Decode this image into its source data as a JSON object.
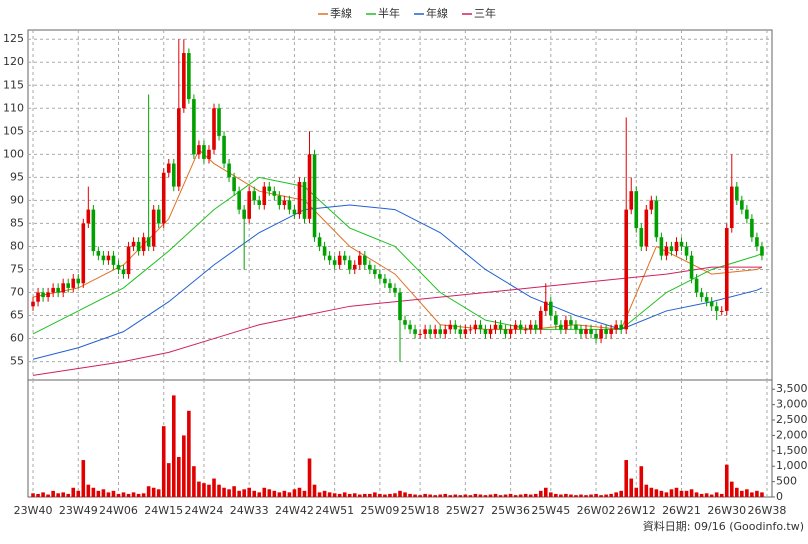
{
  "chart_data": [
    {
      "type": "candlestick",
      "up_color": "#e00000",
      "down_color": "#00a000",
      "grid": true,
      "legend": "top",
      "xlim": [
        -1,
        147
      ],
      "ylim": [
        51,
        127
      ],
      "yticks": [
        55,
        60,
        65,
        70,
        75,
        80,
        85,
        90,
        95,
        100,
        105,
        110,
        115,
        120,
        125
      ],
      "xticks": [
        {
          "value": 0,
          "label": "23W40"
        },
        {
          "value": 9,
          "label": "23W49"
        },
        {
          "value": 17,
          "label": "24W06"
        },
        {
          "value": 26,
          "label": "24W15"
        },
        {
          "value": 34,
          "label": "24W24"
        },
        {
          "value": 43,
          "label": "24W33"
        },
        {
          "value": 52,
          "label": "24W42"
        },
        {
          "value": 60,
          "label": "24W51"
        },
        {
          "value": 69,
          "label": "25W09"
        },
        {
          "value": 77,
          "label": "25W18"
        },
        {
          "value": 86,
          "label": "25W27"
        },
        {
          "value": 95,
          "label": "25W36"
        },
        {
          "value": 103,
          "label": "25W45"
        },
        {
          "value": 112,
          "label": "26W02"
        },
        {
          "value": 120,
          "label": "26W12"
        },
        {
          "value": 129,
          "label": "26W21"
        },
        {
          "value": 138,
          "label": "26W30"
        },
        {
          "value": 146,
          "label": "26W38"
        }
      ],
      "open": [
        67,
        68,
        70,
        69,
        70,
        71,
        70,
        72,
        71,
        73,
        72,
        85,
        88,
        79,
        78,
        77,
        78,
        76,
        75,
        74,
        80,
        81,
        79,
        82,
        80,
        88,
        85,
        96,
        98,
        93,
        110,
        122,
        112,
        100,
        102,
        99,
        101,
        110,
        104,
        98,
        95,
        92,
        88,
        86,
        92,
        90,
        89,
        93,
        92,
        91,
        89,
        90,
        88,
        87,
        94,
        86,
        100,
        82,
        80,
        78,
        77,
        76,
        78,
        77,
        75,
        76,
        78,
        76,
        75,
        74,
        73,
        72,
        71,
        70,
        64,
        63,
        62,
        61,
        61,
        62,
        61,
        62,
        61,
        62,
        63,
        62,
        61,
        62,
        62,
        63,
        62,
        61,
        62,
        63,
        62,
        61,
        62,
        63,
        62,
        62,
        63,
        62,
        66,
        68,
        65,
        63,
        62,
        64,
        63,
        62,
        61,
        62,
        61,
        60,
        62,
        61,
        62,
        63,
        62,
        88,
        92,
        84,
        80,
        88,
        90,
        82,
        78,
        80,
        79,
        81,
        80,
        78,
        73,
        70,
        69,
        68,
        67,
        66,
        66,
        84,
        93,
        90,
        88,
        86,
        82,
        80
      ],
      "high": [
        69,
        71,
        71,
        71,
        72,
        72,
        73,
        73,
        74,
        74,
        86,
        93,
        89,
        80,
        79,
        79,
        79,
        77,
        76,
        81,
        82,
        82,
        83,
        113,
        89,
        89,
        97,
        99,
        99,
        125,
        125,
        123,
        113,
        103,
        103,
        102,
        111,
        111,
        105,
        99,
        96,
        93,
        89,
        93,
        93,
        91,
        94,
        94,
        93,
        92,
        91,
        91,
        89,
        95,
        95,
        105,
        101,
        83,
        81,
        79,
        78,
        79,
        79,
        78,
        77,
        79,
        79,
        77,
        76,
        75,
        74,
        73,
        72,
        71,
        65,
        64,
        63,
        62,
        63,
        63,
        63,
        63,
        63,
        64,
        64,
        63,
        63,
        63,
        64,
        64,
        63,
        63,
        64,
        64,
        63,
        63,
        64,
        64,
        63,
        64,
        64,
        67,
        72,
        69,
        66,
        64,
        65,
        65,
        64,
        63,
        63,
        63,
        62,
        63,
        63,
        63,
        64,
        64,
        108,
        95,
        93,
        85,
        89,
        91,
        91,
        83,
        81,
        81,
        82,
        82,
        81,
        79,
        74,
        71,
        70,
        69,
        68,
        67,
        85,
        100,
        94,
        91,
        89,
        87,
        83,
        81
      ],
      "low": [
        66,
        67,
        68,
        68,
        69,
        69,
        69,
        70,
        70,
        71,
        71,
        84,
        78,
        77,
        76,
        76,
        75,
        74,
        73,
        73,
        79,
        78,
        78,
        79,
        79,
        84,
        84,
        95,
        92,
        92,
        109,
        111,
        99,
        99,
        98,
        98,
        100,
        103,
        97,
        94,
        91,
        87,
        75,
        85,
        89,
        88,
        88,
        91,
        90,
        88,
        88,
        87,
        86,
        86,
        85,
        85,
        81,
        79,
        77,
        76,
        75,
        75,
        76,
        74,
        74,
        75,
        75,
        74,
        73,
        72,
        71,
        70,
        69,
        55,
        62,
        61,
        60,
        60,
        60,
        60,
        60,
        60,
        60,
        61,
        61,
        60,
        60,
        61,
        61,
        61,
        60,
        60,
        61,
        61,
        60,
        60,
        61,
        61,
        61,
        61,
        61,
        61,
        65,
        64,
        62,
        61,
        61,
        62,
        61,
        60,
        60,
        60,
        59,
        59,
        60,
        60,
        61,
        61,
        61,
        87,
        83,
        79,
        79,
        87,
        81,
        77,
        77,
        78,
        78,
        79,
        77,
        72,
        69,
        68,
        67,
        66,
        64,
        65,
        65,
        83,
        89,
        87,
        85,
        81,
        79,
        77
      ],
      "close": [
        68,
        70,
        69,
        70,
        71,
        70,
        72,
        71,
        73,
        72,
        85,
        88,
        79,
        78,
        77,
        78,
        76,
        75,
        74,
        80,
        81,
        79,
        82,
        80,
        88,
        85,
        96,
        98,
        93,
        110,
        122,
        112,
        100,
        102,
        99,
        101,
        110,
        104,
        98,
        95,
        92,
        88,
        86,
        92,
        90,
        89,
        93,
        92,
        91,
        89,
        90,
        88,
        87,
        94,
        86,
        100,
        82,
        80,
        78,
        77,
        76,
        78,
        77,
        75,
        76,
        78,
        76,
        75,
        74,
        73,
        72,
        71,
        70,
        64,
        63,
        62,
        61,
        61,
        62,
        61,
        62,
        61,
        62,
        63,
        62,
        61,
        62,
        62,
        63,
        62,
        61,
        62,
        63,
        62,
        61,
        62,
        63,
        62,
        62,
        63,
        62,
        66,
        68,
        65,
        63,
        62,
        64,
        63,
        62,
        61,
        62,
        61,
        60,
        62,
        61,
        62,
        63,
        62,
        88,
        92,
        84,
        80,
        88,
        90,
        82,
        78,
        80,
        79,
        81,
        80,
        78,
        73,
        70,
        69,
        68,
        67,
        66,
        66,
        84,
        93,
        90,
        88,
        86,
        82,
        80,
        78
      ],
      "series": [
        {
          "name": "季線",
          "color": "#e07020",
          "x": [
            0,
            9,
            18,
            27,
            33,
            36,
            45,
            54,
            63,
            72,
            81,
            90,
            99,
            108,
            117,
            124,
            135,
            144,
            145
          ],
          "values": [
            69,
            71,
            76,
            86,
            101,
            98,
            92,
            90,
            80,
            74,
            63,
            62,
            62,
            63,
            62,
            80,
            74,
            75,
            75.5
          ]
        },
        {
          "name": "半年",
          "color": "#20c020",
          "x": [
            0,
            9,
            18,
            27,
            36,
            45,
            54,
            63,
            72,
            81,
            90,
            99,
            108,
            117,
            126,
            135,
            144,
            145
          ],
          "values": [
            61,
            66,
            71,
            79,
            88,
            95,
            93,
            84,
            80,
            70,
            64,
            62,
            62,
            62,
            70,
            75,
            78,
            78.5
          ]
        },
        {
          "name": "年線",
          "color": "#2060d0",
          "x": [
            0,
            9,
            18,
            27,
            36,
            45,
            54,
            63,
            72,
            81,
            90,
            99,
            108,
            117,
            126,
            135,
            144,
            145
          ],
          "values": [
            55.5,
            58,
            61.5,
            68,
            76,
            83,
            88,
            89,
            88,
            83,
            75,
            69,
            65,
            62,
            66,
            68,
            70.5,
            71
          ]
        },
        {
          "name": "三年",
          "color": "#d02060",
          "x": [
            0,
            9,
            18,
            27,
            36,
            45,
            54,
            63,
            72,
            81,
            90,
            99,
            108,
            117,
            126,
            135,
            144,
            145
          ],
          "values": [
            52,
            53.5,
            55,
            57,
            60,
            63,
            65,
            67,
            68,
            69,
            70,
            71,
            72,
            73,
            74,
            75.5,
            75.5,
            75.5
          ]
        }
      ]
    },
    {
      "type": "bar",
      "color": "#e00000",
      "grid": true,
      "xlim": [
        -1,
        147
      ],
      "ylim": [
        0,
        3800
      ],
      "yticks": [
        0,
        500,
        {
          "value": 1000,
          "label": "1,000"
        },
        {
          "value": 1500,
          "label": "1,500"
        },
        {
          "value": 2000,
          "label": "2,000"
        },
        {
          "value": 2500,
          "label": "2,500"
        },
        {
          "value": 3000,
          "label": "3,000"
        },
        {
          "value": 3500,
          "label": "3,500"
        }
      ],
      "values": [
        120,
        100,
        150,
        80,
        200,
        120,
        150,
        100,
        300,
        200,
        1200,
        400,
        300,
        200,
        250,
        150,
        200,
        100,
        150,
        100,
        150,
        100,
        120,
        350,
        300,
        250,
        2300,
        1100,
        3300,
        1300,
        2000,
        2800,
        1000,
        500,
        450,
        400,
        600,
        400,
        300,
        250,
        350,
        200,
        250,
        300,
        200,
        150,
        300,
        250,
        200,
        150,
        200,
        150,
        250,
        300,
        200,
        1250,
        400,
        150,
        200,
        150,
        120,
        100,
        150,
        100,
        120,
        80,
        100,
        100,
        150,
        100,
        80,
        100,
        120,
        200,
        150,
        100,
        80,
        60,
        100,
        80,
        60,
        80,
        100,
        60,
        80,
        60,
        80,
        60,
        100,
        80,
        60,
        80,
        100,
        60,
        80,
        100,
        60,
        80,
        100,
        80,
        100,
        200,
        300,
        150,
        100,
        80,
        100,
        80,
        60,
        80,
        60,
        80,
        100,
        60,
        80,
        100,
        150,
        200,
        1200,
        600,
        300,
        1000,
        400,
        300,
        250,
        200,
        150,
        250,
        300,
        200,
        200,
        250,
        150,
        100,
        120,
        80,
        150,
        100,
        1050,
        500,
        300,
        200,
        250,
        150,
        200,
        150
      ]
    }
  ],
  "source_note": "資料日期: 09/16  (Goodinfo.tw)"
}
